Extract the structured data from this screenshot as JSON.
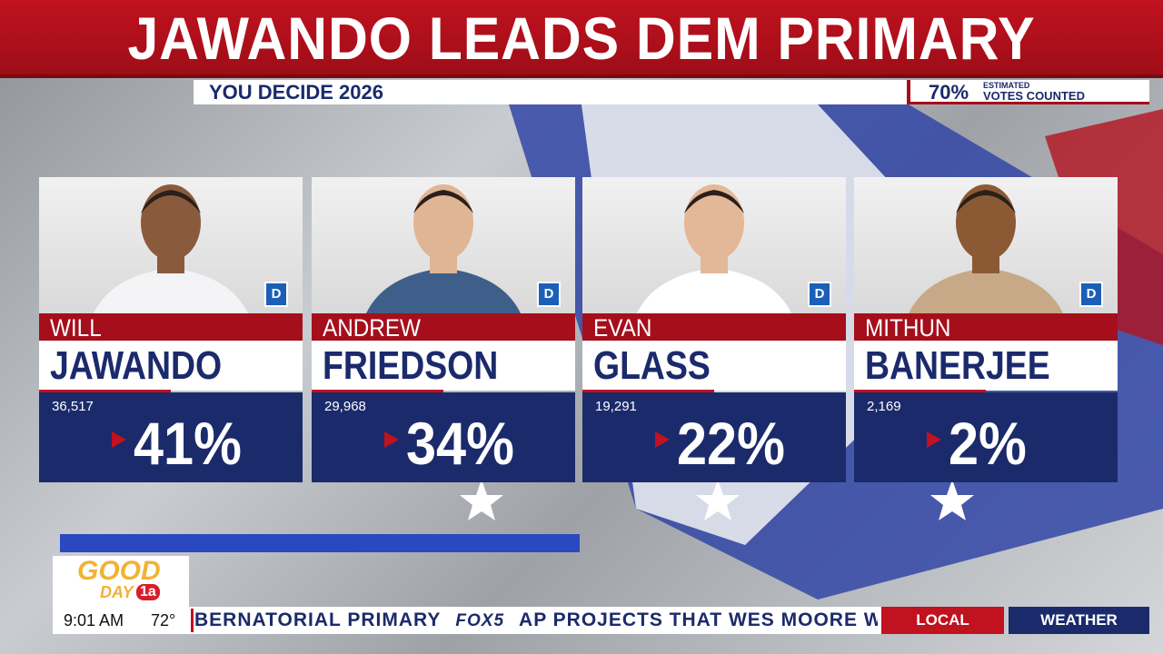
{
  "header": {
    "title": "JAWANDO LEADS DEM PRIMARY",
    "subtitle": "YOU DECIDE 2026",
    "estimate": {
      "value": "70%",
      "label_top": "ESTIMATED",
      "label_bottom": "VOTES COUNTED"
    }
  },
  "candidates": [
    {
      "first": "WILL",
      "last": "JAWANDO",
      "party": "D",
      "votes": "36,517",
      "percent": "41%"
    },
    {
      "first": "ANDREW",
      "last": "FRIEDSON",
      "party": "D",
      "votes": "29,968",
      "percent": "34%"
    },
    {
      "first": "EVAN",
      "last": "GLASS",
      "party": "D",
      "votes": "19,291",
      "percent": "22%"
    },
    {
      "first": "MITHUN",
      "last": "BANERJEE",
      "party": "D",
      "votes": "2,169",
      "percent": "2%"
    }
  ],
  "footer": {
    "logo": {
      "line1": "GOOD",
      "line2": "DAY",
      "badge": "1a"
    },
    "time": "9:01 AM",
    "temperature": "72°",
    "ticker": [
      "BERNATORIAL PRIMARY",
      "FOX5",
      "AP PROJECTS THAT WES MOORE WINS"
    ],
    "tabs": [
      "LOCAL",
      "WEATHER"
    ]
  }
}
